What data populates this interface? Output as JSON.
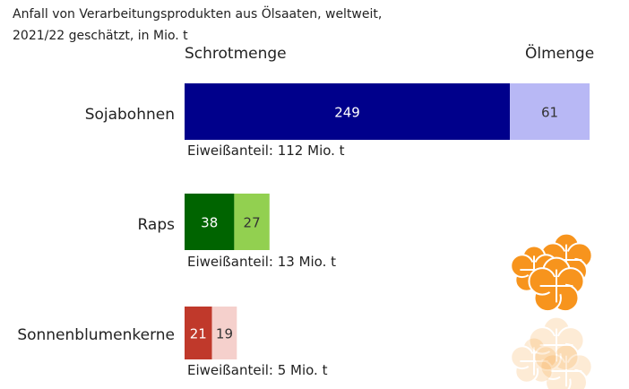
{
  "title_line1": "Anfall von Verarbeitungsprodukten aus Ölsaaten, weltweit,",
  "title_line2": "2021/22 geschätzt, in Mio. t",
  "chart_data": {
    "type": "bar",
    "orientation": "horizontal",
    "stacked": true,
    "categories": [
      "Sojabohnen",
      "Raps",
      "Sonnenblumenkerne"
    ],
    "series": [
      {
        "name": "Schrotmenge",
        "values": [
          249,
          38,
          21
        ]
      },
      {
        "name": "Ölmenge",
        "values": [
          61,
          27,
          19
        ]
      }
    ],
    "annotations": [
      "Eiweißanteil: 112 Mio. t",
      "Eiweißanteil: 13 Mio. t",
      "Eiweißanteil: 5 Mio. t"
    ],
    "colors": [
      {
        "meal": "#00008b",
        "oil": "#b8b8f5",
        "meal_text": "#ffffff",
        "oil_text": "#333333"
      },
      {
        "meal": "#006400",
        "oil": "#92d050",
        "meal_text": "#ffffff",
        "oil_text": "#333333"
      },
      {
        "meal": "#c0392b",
        "oil": "#f5d0cc",
        "meal_text": "#ffffff",
        "oil_text": "#333333"
      }
    ],
    "grid": false,
    "legend": "column headers above bars"
  },
  "decoration": {
    "icon": "flower-icon",
    "color": "#f7941d"
  }
}
